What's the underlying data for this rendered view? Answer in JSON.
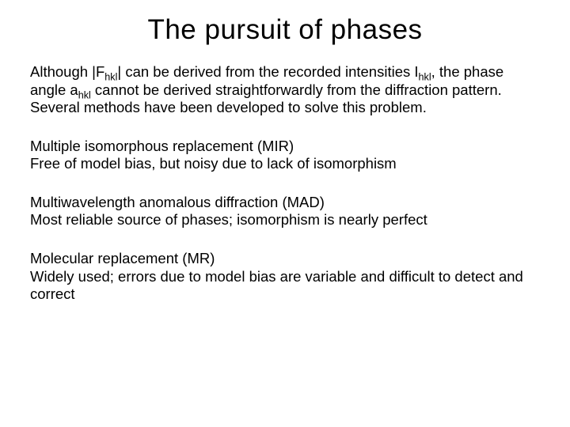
{
  "title": "The pursuit of phases",
  "intro": {
    "pre_F": "Although |F",
    "sub1": "hkl",
    "mid1": "| can be derived from the recorded intensities I",
    "sub2": "hkl",
    "mid2": ", the phase angle a",
    "sub3": "hkl",
    "post": " cannot be derived straightforwardly from the diffraction pattern.  Several methods have been developed to solve this problem."
  },
  "methods": [
    {
      "heading": "Multiple isomorphous replacement (MIR)",
      "desc": "Free of model bias, but noisy due to lack of isomorphism"
    },
    {
      "heading": "Multiwavelength anomalous diffraction (MAD)",
      "desc": "Most reliable source of phases; isomorphism is nearly perfect"
    },
    {
      "heading": "Molecular replacement (MR)",
      "desc": "Widely used; errors due to model bias are variable and difficult to detect and correct"
    }
  ]
}
